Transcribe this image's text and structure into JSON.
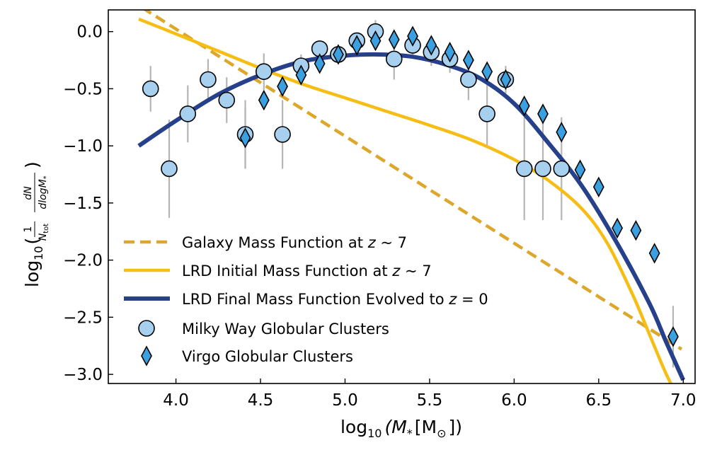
{
  "chart_data": {
    "type": "scatter",
    "xlim": [
      3.6,
      7.07
    ],
    "ylim": [
      -3.08,
      0.19
    ],
    "xticks": [
      4.0,
      4.5,
      5.0,
      5.5,
      6.0,
      6.5,
      7.0
    ],
    "xtick_labels": [
      "4.0",
      "4.5",
      "5.0",
      "5.5",
      "6.0",
      "6.5",
      "7.0"
    ],
    "yticks": [
      0.0,
      -0.5,
      -1.0,
      -1.5,
      -2.0,
      -2.5,
      -3.0
    ],
    "ytick_labels": [
      "0.0",
      "−0.5",
      "−1.0",
      "−1.5",
      "−2.0",
      "−2.5",
      "−3.0"
    ],
    "xlabel": {
      "prefix": "log",
      "sub": "10",
      "body": "(M",
      "star": "*",
      "rest": "[M",
      "sun": "⊙",
      "end": "])"
    },
    "ylabel": {
      "prefix": "log",
      "sub": "10",
      "open": "(",
      "close": ")",
      "frac1_num": "1",
      "frac1_den": "N",
      "frac1_den_sub": "tot",
      "frac2_num": "dN",
      "frac2_den": "dlogM",
      "frac2_den_sub": "*"
    },
    "legend_position": "lower-left",
    "series": [
      {
        "name": "Galaxy Mass Function at z ~ 7",
        "label_main": "Galaxy Mass Function at ",
        "label_z": "z",
        "label_rest": " ~ 7",
        "kind": "line",
        "style": "dashed",
        "color": "#dca72a",
        "x": [
          3.8,
          6.99
        ],
        "y": [
          0.21,
          -2.78
        ]
      },
      {
        "name": "LRD Initial Mass Function at z ~ 7",
        "label_main": "LRD Initial Mass Function at ",
        "label_z": "z",
        "label_rest": " ~ 7",
        "kind": "line",
        "style": "solid",
        "color": "#f6be15",
        "x": [
          3.78,
          4.0,
          4.25,
          4.5,
          4.75,
          5.0,
          5.25,
          5.5,
          5.75,
          6.0,
          6.2,
          6.4,
          6.55,
          6.7,
          6.8,
          6.9,
          6.97
        ],
        "y": [
          0.11,
          -0.02,
          -0.17,
          -0.32,
          -0.46,
          -0.58,
          -0.7,
          -0.82,
          -0.95,
          -1.12,
          -1.3,
          -1.55,
          -1.85,
          -2.3,
          -2.65,
          -3.0,
          -3.2
        ]
      },
      {
        "name": "LRD Final Mass Function Evolved to z = 0",
        "label_main": "LRD Final Mass Function Evolved to ",
        "label_z": "z",
        "label_rest": " = 0",
        "kind": "line",
        "style": "solid",
        "color": "#26408b",
        "x": [
          3.78,
          4.0,
          4.25,
          4.5,
          4.75,
          5.0,
          5.2,
          5.4,
          5.6,
          5.8,
          6.0,
          6.2,
          6.4,
          6.6,
          6.8,
          6.9,
          7.0
        ],
        "y": [
          -1.0,
          -0.78,
          -0.55,
          -0.38,
          -0.26,
          -0.21,
          -0.2,
          -0.22,
          -0.29,
          -0.41,
          -0.63,
          -0.97,
          -1.35,
          -1.83,
          -2.38,
          -2.72,
          -3.05
        ]
      },
      {
        "name": "Milky Way Globular Clusters",
        "kind": "scatter",
        "marker": "circle",
        "color": "#a7d0ef",
        "x": [
          3.85,
          3.96,
          4.07,
          4.19,
          4.3,
          4.41,
          4.52,
          4.63,
          4.74,
          4.85,
          4.96,
          5.07,
          5.18,
          5.29,
          5.4,
          5.51,
          5.62,
          5.73,
          5.84,
          5.95,
          6.06,
          6.17,
          6.28
        ],
        "y": [
          -0.5,
          -1.2,
          -0.72,
          -0.42,
          -0.6,
          -0.9,
          -0.35,
          -0.9,
          -0.3,
          -0.15,
          -0.2,
          -0.08,
          0.0,
          -0.24,
          -0.12,
          -0.18,
          -0.24,
          -0.42,
          -0.72,
          -0.42,
          -1.2,
          -1.2,
          -1.2
        ],
        "err": [
          0.2,
          0.43,
          0.25,
          0.18,
          0.2,
          0.3,
          0.16,
          0.3,
          0.1,
          0.06,
          0.08,
          0.06,
          0.1,
          0.18,
          0.1,
          0.12,
          0.12,
          0.18,
          0.3,
          0.12,
          0.45,
          0.45,
          0.45
        ]
      },
      {
        "name": "Virgo Globular Clusters",
        "kind": "scatter",
        "marker": "diamond",
        "color": "#3aa0df",
        "x": [
          4.41,
          4.52,
          4.63,
          4.74,
          4.85,
          4.96,
          5.07,
          5.18,
          5.29,
          5.4,
          5.51,
          5.62,
          5.73,
          5.84,
          5.95,
          6.06,
          6.17,
          6.28,
          6.39,
          6.5,
          6.61,
          6.72,
          6.83,
          6.94
        ],
        "y": [
          -0.93,
          -0.6,
          -0.48,
          -0.38,
          -0.28,
          -0.2,
          -0.12,
          -0.08,
          -0.07,
          -0.04,
          -0.12,
          -0.18,
          -0.25,
          -0.35,
          -0.42,
          -0.65,
          -0.72,
          -0.88,
          -1.21,
          -1.36,
          -1.72,
          -1.74,
          -1.94,
          -2.67
        ],
        "err": [
          0.27,
          0,
          0,
          0,
          0,
          0,
          0,
          0,
          0,
          0,
          0,
          0,
          0,
          0,
          0,
          0,
          0,
          0,
          0,
          0,
          0,
          0,
          0,
          0.27
        ]
      }
    ]
  }
}
